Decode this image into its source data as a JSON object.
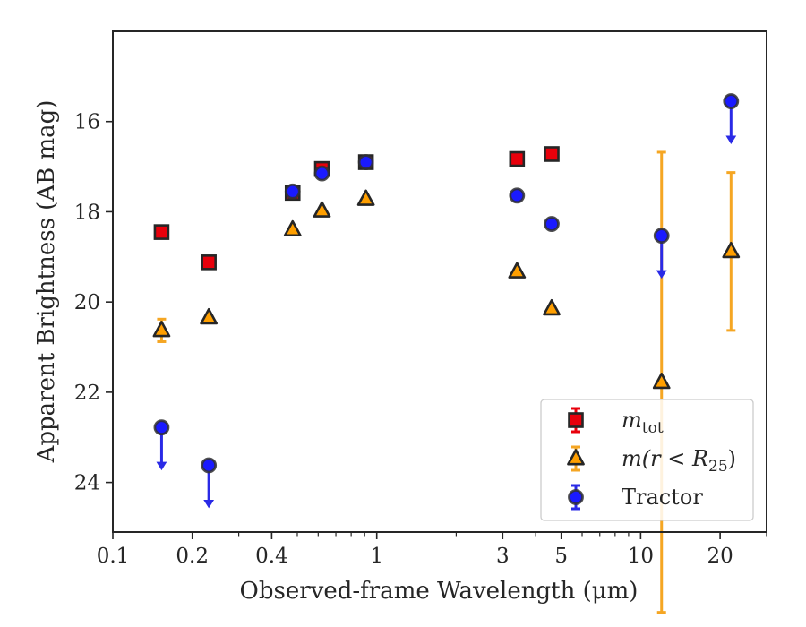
{
  "chart_data": {
    "type": "scatter",
    "xlabel": "Observed-frame Wavelength (μm)",
    "ylabel": "Apparent Brightness (AB mag)",
    "x_scale": "log",
    "xlim": [
      0.1,
      30
    ],
    "ylim": [
      25.1,
      14.0
    ],
    "y_inverted": true,
    "x_ticks": [
      0.1,
      0.2,
      0.4,
      1,
      3,
      5,
      10,
      20
    ],
    "x_tick_labels": [
      "0.1",
      "0.2",
      "0.4",
      "1",
      "3",
      "5",
      "10",
      "20"
    ],
    "y_ticks": [
      16,
      18,
      20,
      22,
      24
    ],
    "y_tick_labels": [
      "16",
      "18",
      "20",
      "22",
      "24"
    ],
    "grid": false,
    "legend_position": "lower right",
    "series": [
      {
        "label_main": "m",
        "label_sub": "tot",
        "marker": "square",
        "color": "#e8000b",
        "edge": "#262626",
        "errcolor": "#e8000b",
        "points": [
          {
            "x": 0.153,
            "y": 18.45,
            "err": 0.03
          },
          {
            "x": 0.231,
            "y": 19.12,
            "err": 0.03
          },
          {
            "x": 0.48,
            "y": 17.58,
            "err": 0.02
          },
          {
            "x": 0.62,
            "y": 17.05,
            "err": 0.02
          },
          {
            "x": 0.91,
            "y": 16.9,
            "err": 0.02
          },
          {
            "x": 3.4,
            "y": 16.83,
            "err": 0.02
          },
          {
            "x": 4.6,
            "y": 16.72,
            "err": 0.02
          }
        ]
      },
      {
        "label_main": "m(r < R",
        "label_sub": "25",
        "label_end": ")",
        "marker": "triangle",
        "color": "#ff9f00",
        "edge": "#262626",
        "errcolor": "#f5a623",
        "points": [
          {
            "x": 0.153,
            "y": 20.63,
            "err": 0.25
          },
          {
            "x": 0.231,
            "y": 20.35,
            "err": 0.03
          },
          {
            "x": 0.48,
            "y": 18.4,
            "err": 0.02
          },
          {
            "x": 0.62,
            "y": 17.98,
            "err": 0.02
          },
          {
            "x": 0.91,
            "y": 17.72,
            "err": 0.02
          },
          {
            "x": 3.4,
            "y": 19.33,
            "err": 0.02
          },
          {
            "x": 4.6,
            "y": 20.15,
            "err": 0.02
          },
          {
            "x": 12.0,
            "y": 21.78,
            "err": 5.1
          },
          {
            "x": 22.0,
            "y": 18.88,
            "err": 1.75
          }
        ]
      },
      {
        "label_main": "Tractor",
        "marker": "circle",
        "color": "#1a1aff",
        "edge": "#303030",
        "errcolor": "#2a2ae6",
        "points": [
          {
            "x": 0.153,
            "y": 22.78,
            "upper_limit": true
          },
          {
            "x": 0.231,
            "y": 23.62,
            "upper_limit": true
          },
          {
            "x": 0.48,
            "y": 17.55
          },
          {
            "x": 0.62,
            "y": 17.15
          },
          {
            "x": 0.91,
            "y": 16.9
          },
          {
            "x": 3.4,
            "y": 17.64
          },
          {
            "x": 4.6,
            "y": 18.27
          },
          {
            "x": 12.0,
            "y": 18.53,
            "upper_limit": true
          },
          {
            "x": 22.0,
            "y": 15.55,
            "upper_limit": true
          }
        ]
      }
    ]
  }
}
